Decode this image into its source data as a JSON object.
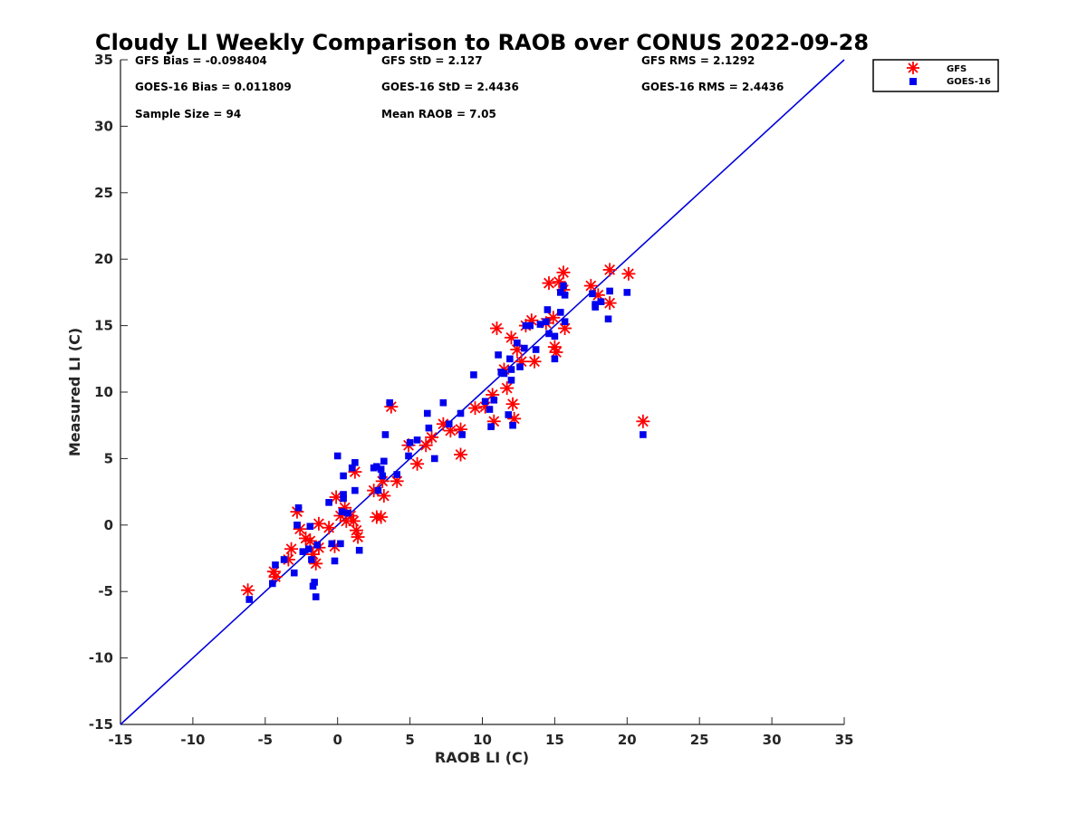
{
  "chart_data": {
    "type": "scatter",
    "title": "Cloudy LI Weekly Comparison to RAOB over CONUS 2022-09-28",
    "xlabel": "RAOB LI (C)",
    "ylabel": "Measured LI (C)",
    "xlim": [
      -15,
      35
    ],
    "ylim": [
      -15,
      35
    ],
    "xticks": [
      -15,
      -10,
      -5,
      0,
      5,
      10,
      15,
      20,
      25,
      30,
      35
    ],
    "yticks": [
      -15,
      -10,
      -5,
      0,
      5,
      10,
      15,
      20,
      25,
      30,
      35
    ],
    "reference_line": {
      "x": [
        -15,
        35
      ],
      "y": [
        -15,
        35
      ],
      "color": "#0000dd"
    },
    "stats": {
      "gfs_bias": "GFS Bias = -0.098404",
      "goes_bias": "GOES-16 Bias = 0.011809",
      "sample_size": "Sample Size = 94",
      "gfs_std": "GFS StD = 2.127",
      "goes_std": "GOES-16 StD = 2.4436",
      "mean_raob": "Mean RAOB = 7.05",
      "gfs_rms": "GFS RMS = 2.1292",
      "goes_rms": "GOES-16 RMS = 2.4436"
    },
    "legend": {
      "position": "top-right",
      "entries": [
        "GFS",
        "GOES-16"
      ]
    },
    "series": [
      {
        "name": "GFS",
        "marker": "asterisk",
        "color": "#ff0000",
        "points": [
          [
            -6.2,
            -4.9
          ],
          [
            -4.4,
            -3.5
          ],
          [
            -4.3,
            -3.9
          ],
          [
            -3.4,
            -2.6
          ],
          [
            -3.2,
            -1.8
          ],
          [
            -2.8,
            1.0
          ],
          [
            -2.6,
            -0.3
          ],
          [
            -2.2,
            -1.0
          ],
          [
            -1.9,
            -1.2
          ],
          [
            -1.7,
            -2.2
          ],
          [
            -1.5,
            -2.9
          ],
          [
            -1.3,
            -1.7
          ],
          [
            -1.3,
            0.1
          ],
          [
            -0.6,
            -0.2
          ],
          [
            -0.2,
            -1.6
          ],
          [
            -0.1,
            2.1
          ],
          [
            0.2,
            0.7
          ],
          [
            0.5,
            1.3
          ],
          [
            0.6,
            0.3
          ],
          [
            0.9,
            0.7
          ],
          [
            1.1,
            0.3
          ],
          [
            1.3,
            -0.4
          ],
          [
            1.4,
            -0.9
          ],
          [
            1.2,
            4.0
          ],
          [
            2.5,
            2.6
          ],
          [
            2.7,
            0.6
          ],
          [
            3.0,
            0.6
          ],
          [
            3.1,
            3.3
          ],
          [
            3.2,
            2.2
          ],
          [
            3.7,
            8.9
          ],
          [
            4.1,
            3.3
          ],
          [
            4.9,
            6.0
          ],
          [
            5.5,
            4.6
          ],
          [
            6.1,
            6.0
          ],
          [
            6.5,
            6.6
          ],
          [
            7.3,
            7.6
          ],
          [
            7.8,
            7.1
          ],
          [
            8.5,
            7.2
          ],
          [
            8.5,
            5.3
          ],
          [
            9.5,
            8.8
          ],
          [
            10.2,
            8.9
          ],
          [
            10.7,
            9.8
          ],
          [
            10.8,
            7.8
          ],
          [
            11.0,
            14.8
          ],
          [
            11.5,
            11.7
          ],
          [
            11.7,
            10.3
          ],
          [
            12.0,
            14.1
          ],
          [
            12.1,
            9.1
          ],
          [
            12.2,
            8.0
          ],
          [
            12.4,
            13.2
          ],
          [
            12.7,
            12.3
          ],
          [
            13.0,
            15.0
          ],
          [
            13.4,
            15.4
          ],
          [
            13.6,
            12.3
          ],
          [
            14.4,
            15.2
          ],
          [
            14.6,
            18.2
          ],
          [
            14.9,
            15.6
          ],
          [
            15.0,
            13.4
          ],
          [
            15.1,
            13.0
          ],
          [
            15.3,
            18.3
          ],
          [
            15.6,
            19.0
          ],
          [
            15.6,
            17.7
          ],
          [
            15.7,
            14.8
          ],
          [
            17.5,
            18.0
          ],
          [
            18.0,
            17.3
          ],
          [
            18.8,
            16.7
          ],
          [
            18.8,
            19.2
          ],
          [
            20.1,
            18.9
          ],
          [
            21.1,
            7.8
          ]
        ]
      },
      {
        "name": "GOES-16",
        "marker": "square",
        "color": "#0000ee",
        "points": [
          [
            -6.1,
            -5.6
          ],
          [
            -4.5,
            -4.4
          ],
          [
            -4.3,
            -3.0
          ],
          [
            -3.7,
            -2.6
          ],
          [
            -3.0,
            -3.6
          ],
          [
            -2.8,
            0.0
          ],
          [
            -2.7,
            1.3
          ],
          [
            -2.4,
            -2.0
          ],
          [
            -2.0,
            -1.8
          ],
          [
            -1.9,
            -0.1
          ],
          [
            -1.8,
            -2.6
          ],
          [
            -1.7,
            -4.6
          ],
          [
            -1.6,
            -4.3
          ],
          [
            -1.5,
            -5.4
          ],
          [
            -1.4,
            -1.5
          ],
          [
            -0.6,
            1.7
          ],
          [
            -0.4,
            -1.4
          ],
          [
            -0.2,
            -2.7
          ],
          [
            0.0,
            5.2
          ],
          [
            0.2,
            -1.4
          ],
          [
            0.3,
            1.0
          ],
          [
            0.4,
            3.7
          ],
          [
            0.4,
            2.0
          ],
          [
            0.4,
            2.3
          ],
          [
            0.7,
            0.9
          ],
          [
            1.0,
            4.3
          ],
          [
            1.2,
            4.7
          ],
          [
            1.2,
            2.6
          ],
          [
            1.5,
            -1.9
          ],
          [
            2.5,
            4.3
          ],
          [
            2.7,
            4.4
          ],
          [
            2.8,
            2.6
          ],
          [
            3.0,
            4.2
          ],
          [
            3.1,
            3.7
          ],
          [
            3.2,
            4.8
          ],
          [
            3.3,
            6.8
          ],
          [
            3.6,
            9.2
          ],
          [
            4.1,
            3.8
          ],
          [
            4.9,
            5.2
          ],
          [
            5.0,
            6.2
          ],
          [
            5.5,
            6.4
          ],
          [
            6.2,
            8.4
          ],
          [
            6.3,
            7.3
          ],
          [
            6.7,
            5.0
          ],
          [
            7.3,
            9.2
          ],
          [
            7.7,
            7.6
          ],
          [
            8.5,
            8.4
          ],
          [
            8.6,
            6.8
          ],
          [
            9.4,
            11.3
          ],
          [
            10.2,
            9.3
          ],
          [
            10.5,
            8.7
          ],
          [
            10.6,
            7.4
          ],
          [
            10.8,
            9.4
          ],
          [
            11.1,
            12.8
          ],
          [
            11.3,
            11.5
          ],
          [
            11.5,
            11.4
          ],
          [
            11.8,
            8.3
          ],
          [
            11.9,
            12.5
          ],
          [
            12.0,
            11.7
          ],
          [
            12.0,
            10.9
          ],
          [
            12.1,
            7.5
          ],
          [
            12.4,
            13.7
          ],
          [
            12.6,
            11.9
          ],
          [
            12.9,
            13.3
          ],
          [
            13.0,
            15.0
          ],
          [
            13.3,
            15.0
          ],
          [
            13.7,
            13.2
          ],
          [
            14.0,
            15.1
          ],
          [
            14.4,
            15.3
          ],
          [
            14.5,
            16.2
          ],
          [
            14.6,
            14.4
          ],
          [
            15.0,
            14.2
          ],
          [
            15.0,
            12.5
          ],
          [
            15.4,
            17.5
          ],
          [
            15.4,
            16.0
          ],
          [
            15.6,
            18.0
          ],
          [
            15.7,
            17.3
          ],
          [
            15.7,
            15.3
          ],
          [
            17.6,
            17.4
          ],
          [
            17.8,
            16.6
          ],
          [
            17.8,
            16.4
          ],
          [
            18.2,
            16.8
          ],
          [
            18.7,
            15.5
          ],
          [
            18.8,
            17.6
          ],
          [
            20.0,
            17.5
          ],
          [
            21.1,
            6.8
          ]
        ]
      }
    ]
  }
}
